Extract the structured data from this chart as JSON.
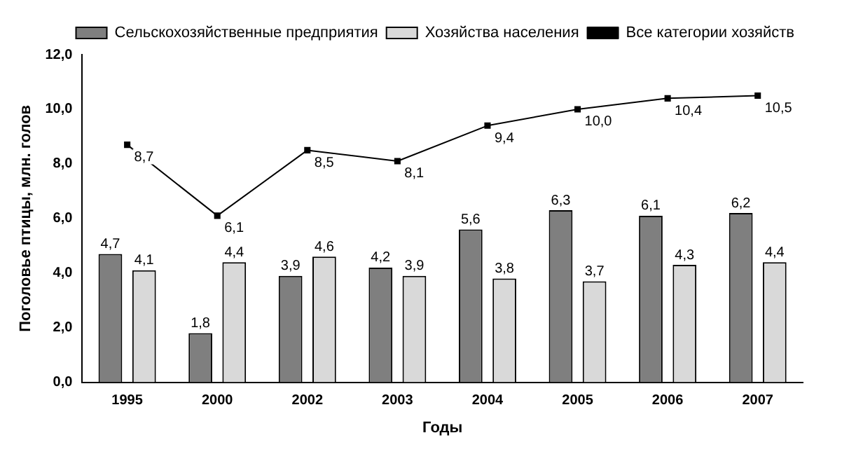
{
  "chart_data": {
    "type": "bar",
    "xlabel": "Годы",
    "ylabel": "Поголовье птицы, млн. голов",
    "categories": [
      "1995",
      "2000",
      "2002",
      "2003",
      "2004",
      "2005",
      "2006",
      "2007"
    ],
    "series": [
      {
        "name": "Сельскохозяйственные предприятия",
        "color": "#7f7f7f",
        "values": [
          4.7,
          1.8,
          3.9,
          4.2,
          5.6,
          6.3,
          6.1,
          6.2
        ],
        "value_labels": [
          "4,7",
          "1,8",
          "3,9",
          "4,2",
          "5,6",
          "6,3",
          "6,1",
          "6,2"
        ]
      },
      {
        "name": "Хозяйства населения",
        "color": "#d9d9d9",
        "values": [
          4.1,
          4.4,
          4.6,
          3.9,
          3.8,
          3.7,
          4.3,
          4.4
        ],
        "value_labels": [
          "4,1",
          "4,4",
          "4,6",
          "3,9",
          "3,8",
          "3,7",
          "4,3",
          "4,4"
        ]
      },
      {
        "name": "Все категории хозяйств",
        "type": "line",
        "color": "#000000",
        "values": [
          8.7,
          6.1,
          8.5,
          8.1,
          9.4,
          10.0,
          10.4,
          10.5
        ],
        "value_labels": [
          "8,7",
          "6,1",
          "8,5",
          "8,1",
          "9,4",
          "10,0",
          "10,4",
          "10,5"
        ]
      }
    ],
    "ylim": [
      0,
      12
    ],
    "yticks": [
      {
        "value": 0,
        "label": "0,0"
      },
      {
        "value": 2,
        "label": "2,0"
      },
      {
        "value": 4,
        "label": "4,0"
      },
      {
        "value": 6,
        "label": "6,0"
      },
      {
        "value": 8,
        "label": "8,0"
      },
      {
        "value": 10,
        "label": "10,0"
      },
      {
        "value": 12,
        "label": "12,0"
      }
    ],
    "grid": false,
    "legend": "top right",
    "marker": "square",
    "line_style": "solid"
  }
}
